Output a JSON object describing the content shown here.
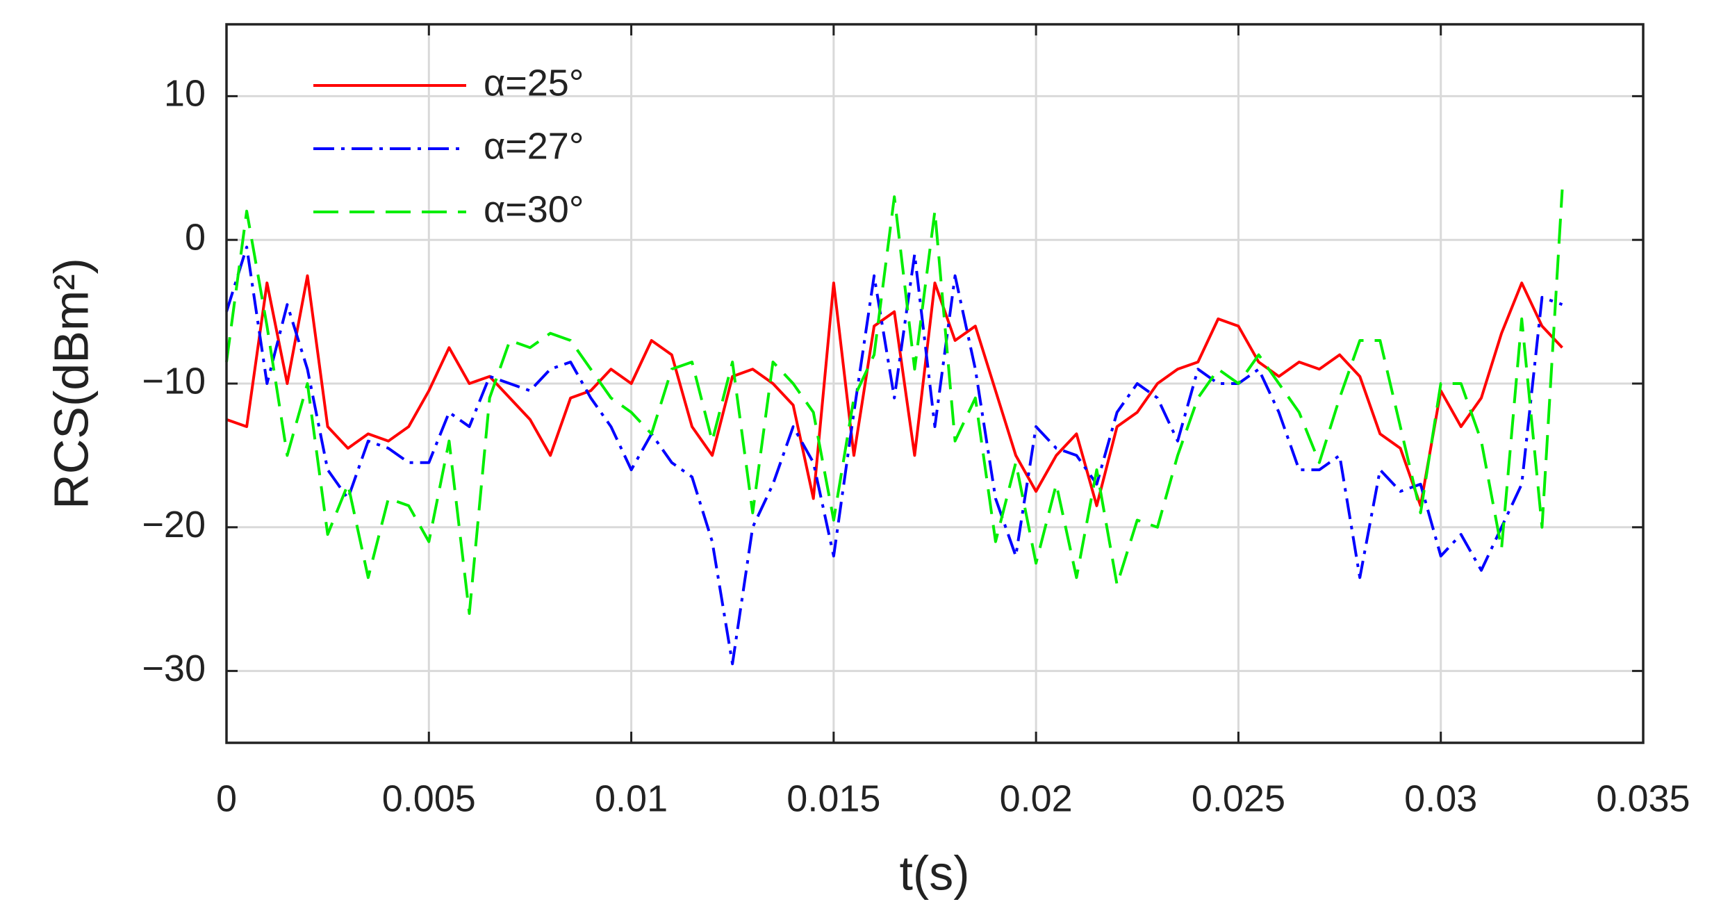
{
  "chart_data": {
    "type": "line",
    "x_label": "t(s)",
    "y_label": "RCS(dBm²)",
    "x": [
      0,
      0.0005,
      0.001,
      0.0015,
      0.002,
      0.0025,
      0.003,
      0.0035,
      0.004,
      0.0045,
      0.005,
      0.0055,
      0.006,
      0.0065,
      0.007,
      0.0075,
      0.008,
      0.0085,
      0.009,
      0.0095,
      0.01,
      0.0105,
      0.011,
      0.0115,
      0.012,
      0.0125,
      0.013,
      0.0135,
      0.014,
      0.0145,
      0.015,
      0.0155,
      0.016,
      0.0165,
      0.017,
      0.0175,
      0.018,
      0.0185,
      0.019,
      0.0195,
      0.02,
      0.0205,
      0.021,
      0.0215,
      0.022,
      0.0225,
      0.023,
      0.0235,
      0.024,
      0.0245,
      0.025,
      0.0255,
      0.026,
      0.0265,
      0.027,
      0.0275,
      0.028,
      0.0285,
      0.029,
      0.0295,
      0.03,
      0.0305,
      0.031,
      0.0315,
      0.032,
      0.0325,
      0.033
    ],
    "series": [
      {
        "name": "α=25°",
        "color": "#ff0000",
        "dash": "solid",
        "values": [
          -12.5,
          -13,
          -3,
          -10,
          -2.5,
          -13,
          -14.5,
          -13.5,
          -14,
          -13,
          -10.5,
          -7.5,
          -10,
          -9.5,
          -11,
          -12.5,
          -15,
          -11,
          -10.5,
          -9,
          -10,
          -7,
          -8,
          -13,
          -15,
          -9.5,
          -9,
          -10,
          -11.5,
          -18,
          -3,
          -15,
          -6,
          -5,
          -15,
          -3,
          -7,
          -6,
          -10.5,
          -15,
          -17.5,
          -15,
          -13.5,
          -18.5,
          -13,
          -12,
          -10,
          -9,
          -8.5,
          -5.5,
          -6,
          -8.5,
          -9.5,
          -8.5,
          -9,
          -8,
          -9.5,
          -13.5,
          -14.5,
          -18.5,
          -10.5,
          -13,
          -11,
          -6.5,
          -3,
          -6,
          -7.5
        ]
      },
      {
        "name": "α=27°",
        "color": "#0000ff",
        "dash": "dashdot",
        "values": [
          -5,
          -0.5,
          -10,
          -4.5,
          -9,
          -16,
          -18,
          -14,
          -14.5,
          -15.5,
          -15.5,
          -12,
          -13,
          -9.5,
          -10,
          -10.5,
          -9,
          -8.5,
          -11,
          -13,
          -16,
          -13.5,
          -15.5,
          -16.5,
          -21,
          -29.5,
          -20,
          -17,
          -13,
          -15.5,
          -22,
          -12,
          -2.5,
          -11,
          -1,
          -13,
          -2.5,
          -9,
          -18,
          -22,
          -13,
          -14.5,
          -15,
          -17,
          -12,
          -10,
          -11,
          -14,
          -9,
          -10,
          -10,
          -9,
          -12,
          -16,
          -16,
          -15,
          -23.5,
          -16,
          -17.5,
          -17,
          -22,
          -20.5,
          -23,
          -20,
          -17,
          -4,
          -4.5
        ]
      },
      {
        "name": "α=30°",
        "color": "#00ee00",
        "dash": "dashed",
        "values": [
          -8.5,
          2,
          -6,
          -15,
          -10,
          -20.5,
          -17,
          -23.5,
          -18,
          -18.5,
          -21,
          -14,
          -26,
          -11,
          -7,
          -7.5,
          -6.5,
          -7,
          -9,
          -11,
          -12,
          -13.5,
          -9,
          -8.5,
          -14,
          -8.5,
          -19,
          -8.5,
          -10,
          -12,
          -19.5,
          -11,
          -8,
          3,
          -9,
          2,
          -14,
          -11,
          -21,
          -15.5,
          -22.5,
          -17,
          -23.5,
          -16,
          -24,
          -19.5,
          -20,
          -15,
          -11,
          -9,
          -10,
          -8,
          -10,
          -12,
          -15.5,
          -11,
          -7,
          -7,
          -13,
          -19,
          -10,
          -10,
          -14,
          -21.5,
          -5.5,
          -20,
          3.5
        ]
      }
    ],
    "xlim": [
      0,
      0.035
    ],
    "ylim": [
      -35,
      15
    ],
    "xticks": [
      0,
      0.005,
      0.01,
      0.015,
      0.02,
      0.025,
      0.03,
      0.035
    ],
    "yticks": [
      {
        "value": -30,
        "label": "−30"
      },
      {
        "value": -20,
        "label": "−20"
      },
      {
        "value": -10,
        "label": "−10"
      },
      0,
      10
    ],
    "grid": true,
    "legend": "upper left"
  }
}
